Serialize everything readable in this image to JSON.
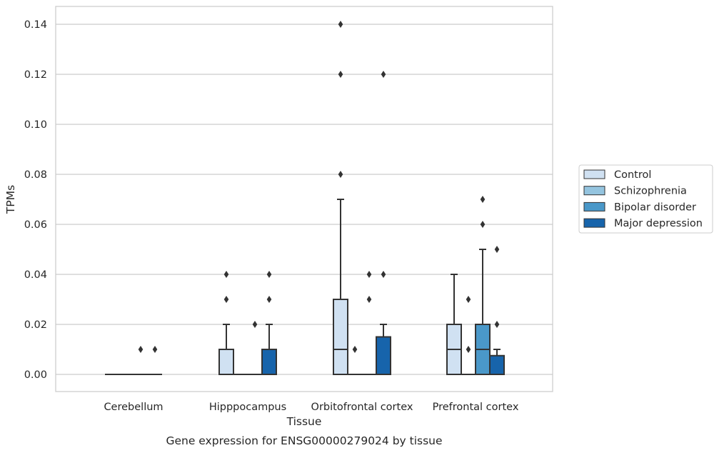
{
  "chart_data": {
    "type": "box",
    "xlabel": "Tissue",
    "ylabel": "TPMs",
    "caption": "Gene expression for ENSG00000279024 by tissue",
    "categories": [
      "Cerebellum",
      "Hipppocampus",
      "Orbitofrontal cortex",
      "Prefrontal cortex"
    ],
    "ylim": [
      -0.007,
      0.147
    ],
    "yticks": [
      0.0,
      0.02,
      0.04,
      0.06,
      0.08,
      0.1,
      0.12,
      0.14
    ],
    "ytick_labels": [
      "0.00",
      "0.02",
      "0.04",
      "0.06",
      "0.08",
      "0.10",
      "0.12",
      "0.14"
    ],
    "grid": "horizontal",
    "legend_position": "right",
    "series": [
      {
        "name": "Control",
        "color": "#d0e1f2",
        "boxes": [
          {
            "q1": 0,
            "median": 0,
            "q3": 0,
            "whisker_low": 0,
            "whisker_high": 0,
            "outliers": []
          },
          {
            "q1": 0,
            "median": 0,
            "q3": 0.01,
            "whisker_low": 0,
            "whisker_high": 0.02,
            "outliers": [
              0.03,
              0.04
            ]
          },
          {
            "q1": 0,
            "median": 0.01,
            "q3": 0.03,
            "whisker_low": 0,
            "whisker_high": 0.07,
            "outliers": [
              0.08,
              0.12,
              0.14
            ]
          },
          {
            "q1": 0,
            "median": 0.01,
            "q3": 0.02,
            "whisker_low": 0,
            "whisker_high": 0.04,
            "outliers": []
          }
        ]
      },
      {
        "name": "Schizophrenia",
        "color": "#94c4df",
        "boxes": [
          {
            "q1": 0,
            "median": 0,
            "q3": 0,
            "whisker_low": 0,
            "whisker_high": 0,
            "outliers": []
          },
          {
            "q1": 0,
            "median": 0,
            "q3": 0,
            "whisker_low": 0,
            "whisker_high": 0,
            "outliers": []
          },
          {
            "q1": 0,
            "median": 0,
            "q3": 0,
            "whisker_low": 0,
            "whisker_high": 0,
            "outliers": [
              0.01
            ]
          },
          {
            "q1": 0,
            "median": 0,
            "q3": 0,
            "whisker_low": 0,
            "whisker_high": 0,
            "outliers": [
              0.01,
              0.03
            ]
          }
        ]
      },
      {
        "name": "Bipolar disorder",
        "color": "#4a98c9",
        "boxes": [
          {
            "q1": 0,
            "median": 0,
            "q3": 0,
            "whisker_low": 0,
            "whisker_high": 0,
            "outliers": [
              0.01
            ]
          },
          {
            "q1": 0,
            "median": 0,
            "q3": 0,
            "whisker_low": 0,
            "whisker_high": 0,
            "outliers": [
              0.02
            ]
          },
          {
            "q1": 0,
            "median": 0,
            "q3": 0,
            "whisker_low": 0,
            "whisker_high": 0,
            "outliers": [
              0.03,
              0.04
            ]
          },
          {
            "q1": 0,
            "median": 0.01,
            "q3": 0.02,
            "whisker_low": 0,
            "whisker_high": 0.05,
            "outliers": [
              0.06,
              0.07
            ]
          }
        ]
      },
      {
        "name": "Major depression",
        "color": "#1764ab",
        "boxes": [
          {
            "q1": 0,
            "median": 0,
            "q3": 0,
            "whisker_low": 0,
            "whisker_high": 0,
            "outliers": [
              0.01
            ]
          },
          {
            "q1": 0,
            "median": 0,
            "q3": 0.01,
            "whisker_low": 0,
            "whisker_high": 0.02,
            "outliers": [
              0.03,
              0.04
            ]
          },
          {
            "q1": 0,
            "median": 0,
            "q3": 0.015,
            "whisker_low": 0,
            "whisker_high": 0.02,
            "outliers": [
              0.04,
              0.12
            ]
          },
          {
            "q1": 0,
            "median": 0,
            "q3": 0.0075,
            "whisker_low": 0,
            "whisker_high": 0.01,
            "outliers": [
              0.02,
              0.05
            ]
          }
        ]
      }
    ]
  }
}
